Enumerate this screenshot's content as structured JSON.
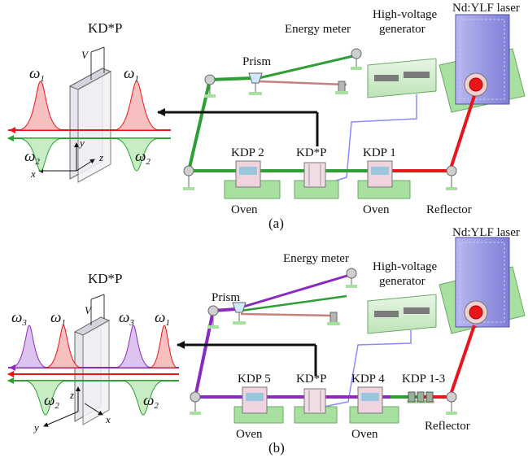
{
  "panel_a": {
    "caption": "(a)",
    "crystal_title": "KD*P",
    "voltage": "V",
    "omega1_left": {
      "sym": "ω",
      "sub": "1"
    },
    "omega1_right": {
      "sym": "ω",
      "sub": "1"
    },
    "omega2_left": {
      "sym": "ω",
      "sub": "2"
    },
    "omega2_right": {
      "sym": "ω",
      "sub": "2"
    },
    "axis_x": "x",
    "axis_y": "y",
    "axis_z": "z",
    "labels": {
      "energy_meter": "Energy meter",
      "hv_line1": "High-voltage",
      "hv_line2": "generator",
      "laser": "Nd:YLF laser",
      "prism": "Prism",
      "kdp2": "KDP 2",
      "kdstarp": "KD*P",
      "kdp1": "KDP 1",
      "oven_left": "Oven",
      "oven_right": "Oven",
      "reflector": "Reflector"
    }
  },
  "panel_b": {
    "caption": "(b)",
    "crystal_title": "KD*P",
    "voltage": "V",
    "omega3_left": {
      "sym": "ω",
      "sub": "3"
    },
    "omega1_left": {
      "sym": "ω",
      "sub": "1"
    },
    "omega3_right": {
      "sym": "ω",
      "sub": "3"
    },
    "omega1_right": {
      "sym": "ω",
      "sub": "1"
    },
    "omega2_left": {
      "sym": "ω",
      "sub": "2"
    },
    "omega2_right": {
      "sym": "ω",
      "sub": "2"
    },
    "axis_x": "x",
    "axis_y": "y",
    "axis_z": "z",
    "labels": {
      "energy_meter": "Energy meter",
      "hv_line1": "High-voltage",
      "hv_line2": "generator",
      "laser": "Nd:YLF laser",
      "prism": "Prism",
      "kdp5": "KDP 5",
      "kdstarp": "KD*P",
      "kdp4": "KDP 4",
      "kdp13": "KDP 1-3",
      "oven_left": "Oven",
      "oven_right": "Oven",
      "reflector": "Reflector"
    }
  },
  "colors": {
    "beam_red": "#e8161b",
    "beam_green": "#2e9e35",
    "beam_purple": "#8a2bbf",
    "beam_pink": "#c98080",
    "cable": "#8a8aff",
    "base_green": "#a8e0a0",
    "laser_body": "#9a9ae6"
  }
}
